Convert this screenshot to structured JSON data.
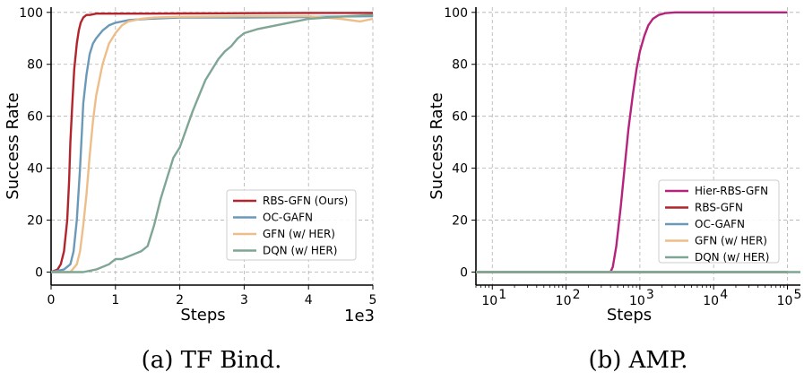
{
  "chart_data": [
    {
      "type": "line",
      "caption": "(a)  TF Bind.",
      "xlabel": "Steps",
      "ylabel": "Success Rate",
      "x_scale_label": "1e3",
      "xlim": [
        0,
        5
      ],
      "ylim": [
        -5,
        102
      ],
      "xticks": [
        "0",
        "1",
        "2",
        "3",
        "4",
        "5"
      ],
      "yticks": [
        "0",
        "20",
        "40",
        "60",
        "80",
        "100"
      ],
      "grid": true,
      "legend_position": "lower-right",
      "series": [
        {
          "name": "RBS-GFN (Ours)",
          "color": "#b2252c",
          "x": [
            0,
            0.1,
            0.15,
            0.2,
            0.25,
            0.28,
            0.3,
            0.33,
            0.36,
            0.4,
            0.43,
            0.46,
            0.5,
            0.55,
            0.6,
            0.7,
            0.8,
            1.0,
            1.5,
            2,
            3,
            4,
            5
          ],
          "y": [
            0,
            1,
            3,
            8,
            20,
            35,
            50,
            65,
            78,
            88,
            93,
            96,
            98,
            99,
            99,
            99.5,
            99.5,
            99.5,
            99.5,
            99.6,
            99.7,
            99.8,
            99.8
          ]
        },
        {
          "name": "OC-GAFN",
          "color": "#6a9ab8",
          "x": [
            0,
            0.2,
            0.3,
            0.35,
            0.4,
            0.45,
            0.48,
            0.5,
            0.55,
            0.6,
            0.65,
            0.7,
            0.8,
            0.9,
            1.0,
            1.2,
            1.5,
            2,
            3,
            4,
            4.5,
            5
          ],
          "y": [
            0,
            1,
            3,
            8,
            20,
            40,
            55,
            65,
            76,
            84,
            88,
            90,
            93,
            95,
            96,
            97,
            97.5,
            98,
            98,
            98.2,
            98.4,
            98.5
          ]
        },
        {
          "name": "GFN (w/ HER)",
          "color": "#eebe8a",
          "x": [
            0,
            0.3,
            0.4,
            0.45,
            0.5,
            0.55,
            0.6,
            0.65,
            0.7,
            0.8,
            0.9,
            1.0,
            1.1,
            1.2,
            1.4,
            1.6,
            2,
            3,
            4,
            4.5,
            4.8,
            5
          ],
          "y": [
            0,
            0,
            3,
            8,
            18,
            30,
            45,
            58,
            68,
            80,
            88,
            92,
            95,
            96.5,
            97.5,
            98,
            98.3,
            98.5,
            98.5,
            97.5,
            96.5,
            97.5
          ]
        },
        {
          "name": "DQN (w/ HER)",
          "color": "#7fa694",
          "x": [
            0,
            0.5,
            0.7,
            0.9,
            1.0,
            1.1,
            1.3,
            1.4,
            1.5,
            1.6,
            1.7,
            1.8,
            1.9,
            2.0,
            2.1,
            2.2,
            2.3,
            2.4,
            2.5,
            2.6,
            2.7,
            2.8,
            2.9,
            3.0,
            3.2,
            3.4,
            3.6,
            3.8,
            4.0,
            4.3,
            4.6,
            5.0
          ],
          "y": [
            0,
            0,
            1,
            3,
            5,
            5,
            7,
            8,
            10,
            18,
            28,
            36,
            44,
            48,
            55,
            62,
            68,
            74,
            78,
            82,
            85,
            87,
            90,
            92,
            93.5,
            94.5,
            95.5,
            96.5,
            97.5,
            98,
            98.5,
            99
          ]
        }
      ]
    },
    {
      "type": "line",
      "caption": "(b)  AMP.",
      "xlabel": "Steps",
      "ylabel": "Success Rate",
      "x_scale": "log",
      "xlim": [
        6,
        150000
      ],
      "ylim": [
        -5,
        102
      ],
      "xticks": [
        10,
        100,
        1000,
        10000,
        100000
      ],
      "xtick_labels": [
        {
          "base": "10",
          "exp": "1"
        },
        {
          "base": "10",
          "exp": "2"
        },
        {
          "base": "10",
          "exp": "3"
        },
        {
          "base": "10",
          "exp": "4"
        },
        {
          "base": "10",
          "exp": "5"
        }
      ],
      "yticks": [
        "0",
        "20",
        "40",
        "60",
        "80",
        "100"
      ],
      "grid": true,
      "legend_position": "lower-right",
      "series": [
        {
          "name": "Hier-RBS-GFN",
          "color": "#b5237d",
          "x": [
            6,
            400,
            430,
            480,
            550,
            620,
            700,
            800,
            900,
            1000,
            1150,
            1300,
            1500,
            1800,
            2200,
            3000,
            5000,
            10000,
            100000
          ],
          "y": [
            0,
            0,
            2,
            10,
            25,
            40,
            55,
            68,
            78,
            85,
            91,
            95,
            97.5,
            99,
            99.7,
            100,
            100,
            100,
            100
          ]
        },
        {
          "name": "RBS-GFN",
          "color": "#b2252c",
          "x": [
            6,
            100000
          ],
          "y": [
            0,
            0
          ]
        },
        {
          "name": "OC-GAFN",
          "color": "#6a9ab8",
          "x": [
            6,
            100000
          ],
          "y": [
            0,
            0
          ]
        },
        {
          "name": "GFN (w/ HER)",
          "color": "#eebe8a",
          "x": [
            6,
            100000
          ],
          "y": [
            0,
            0
          ]
        },
        {
          "name": "DQN (w/ HER)",
          "color": "#7fa694",
          "x": [
            6,
            150000
          ],
          "y": [
            0,
            0
          ]
        }
      ]
    }
  ]
}
